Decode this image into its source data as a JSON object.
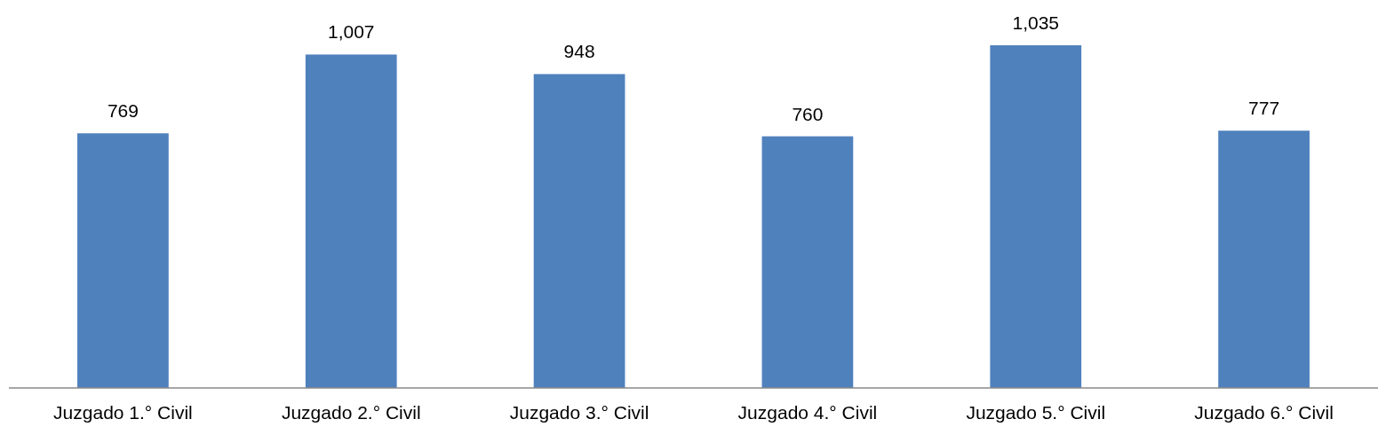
{
  "chart_data": {
    "type": "bar",
    "categories": [
      "Juzgado 1.° Civil",
      "Juzgado 2.° Civil",
      "Juzgado 3.° Civil",
      "Juzgado 4.° Civil",
      "Juzgado 5.° Civil",
      "Juzgado 6.° Civil"
    ],
    "values": [
      769,
      1007,
      948,
      760,
      1035,
      777
    ],
    "value_labels": [
      "769",
      "1,007",
      "948",
      "760",
      "1,035",
      "777"
    ],
    "color": "#4f81bd"
  }
}
